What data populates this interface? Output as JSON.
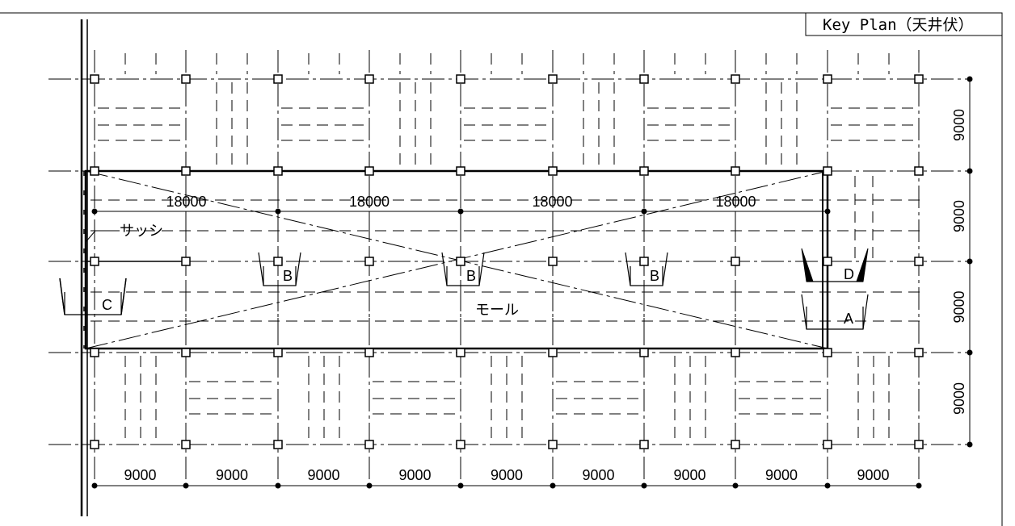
{
  "title": "Key Plan（天井伏）",
  "labels": {
    "sash": "サッシ",
    "mall": "モール",
    "section_c": "C",
    "section_b": "B",
    "section_d": "D",
    "section_a": "A"
  },
  "dimensions": {
    "bottom": [
      "9000",
      "9000",
      "9000",
      "9000",
      "9000",
      "9000",
      "9000",
      "9000",
      "9000"
    ],
    "mall_spans": [
      "18000",
      "18000",
      "18000",
      "18000"
    ],
    "right": [
      "9000",
      "9000",
      "9000",
      "9000"
    ]
  }
}
